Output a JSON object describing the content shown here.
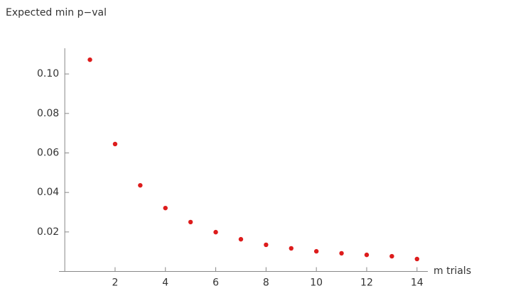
{
  "chart_data": {
    "type": "scatter",
    "ylabel": "Expected min p−val",
    "xlabel": "m trials",
    "x": [
      1,
      2,
      3,
      4,
      5,
      6,
      7,
      8,
      9,
      10,
      11,
      12,
      13,
      14
    ],
    "values": [
      0.1072,
      0.0645,
      0.0436,
      0.0321,
      0.025,
      0.0199,
      0.0163,
      0.0135,
      0.0117,
      0.0102,
      0.0092,
      0.0084,
      0.0077,
      0.0063
    ],
    "color": "#dd1c1c",
    "xlim": [
      -0.23,
      14.43
    ],
    "ylim": [
      0,
      0.113
    ],
    "xticks": [
      2,
      4,
      6,
      8,
      10,
      12,
      14
    ],
    "yticks": [
      {
        "value": 0.02,
        "label": "0.02"
      },
      {
        "value": 0.04,
        "label": "0.04"
      },
      {
        "value": 0.06,
        "label": "0.06"
      },
      {
        "value": 0.08,
        "label": "0.08"
      },
      {
        "value": 0.1,
        "label": "0.10"
      }
    ],
    "grid": false
  }
}
